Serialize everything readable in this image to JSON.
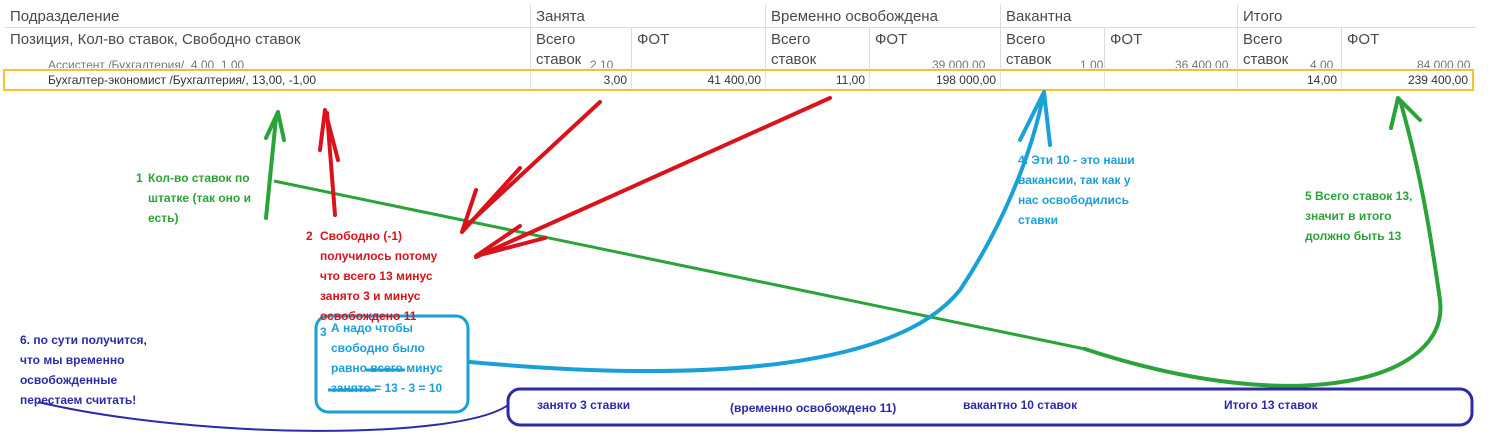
{
  "table": {
    "headers_row1": [
      "Подразделение",
      "Занята",
      "Временно освобождена",
      "Вакантна",
      "Итого"
    ],
    "header_position": "Позиция, Кол-во ставок, Свободно ставок",
    "sub_total": "Всего\nставок",
    "sub_fot": "ФОТ",
    "ghost_row": {
      "position": "Ассистент /Бухгалтерия/, 4,00, 1,00",
      "values": [
        "2,10",
        "39 000,00",
        "1,00",
        "36 400,00",
        "4,00",
        "84 000,00"
      ]
    },
    "selected_row": {
      "position": "Бухгалтер-экономист /Бухгалтерия/, 13,00, -1,00",
      "occupied_total": "3,00",
      "occupied_fot": "41 400,00",
      "temp_total": "11,00",
      "temp_fot": "198 000,00",
      "vacant_total": "",
      "vacant_fot": "",
      "sum_total": "14,00",
      "sum_fot": "239 400,00"
    }
  },
  "annotations": {
    "a1_num": "1",
    "a1_lines": [
      "Кол-во ставок по",
      "штатке (так оно и",
      "есть)"
    ],
    "a2_num": "2",
    "a2_lines": [
      "Свободно (-1)",
      "получилось потому",
      "что всего 13 минус",
      "занято 3 и минус",
      "освобождено 11"
    ],
    "a3_num": "3",
    "a3_lines": [
      "А надо чтобы",
      "свободно было",
      "равно всего минус",
      "занято = 13 - 3 = 10"
    ],
    "a4_lines": [
      "4. Эти 10 - это наши",
      "вакансии, так как у",
      "нас освободились",
      "ставки"
    ],
    "a5_lines": [
      "5 Всего ставок 13,",
      "значит в итого",
      "должно быть 13"
    ],
    "a6_lines": [
      "6. по сути получится,",
      "что мы временно",
      "освобожденные",
      "перестаем считать!"
    ],
    "summary": [
      "занято 3 ставки",
      "(временно освобождено 11)",
      "вакантно 10 ставок",
      "Итого 13 ставок"
    ]
  },
  "colors": {
    "highlight_border": "#f2c230",
    "green": "#2aa33a",
    "red": "#d9121b",
    "blue": "#1aa0d8",
    "navy": "#2b2ba8"
  }
}
